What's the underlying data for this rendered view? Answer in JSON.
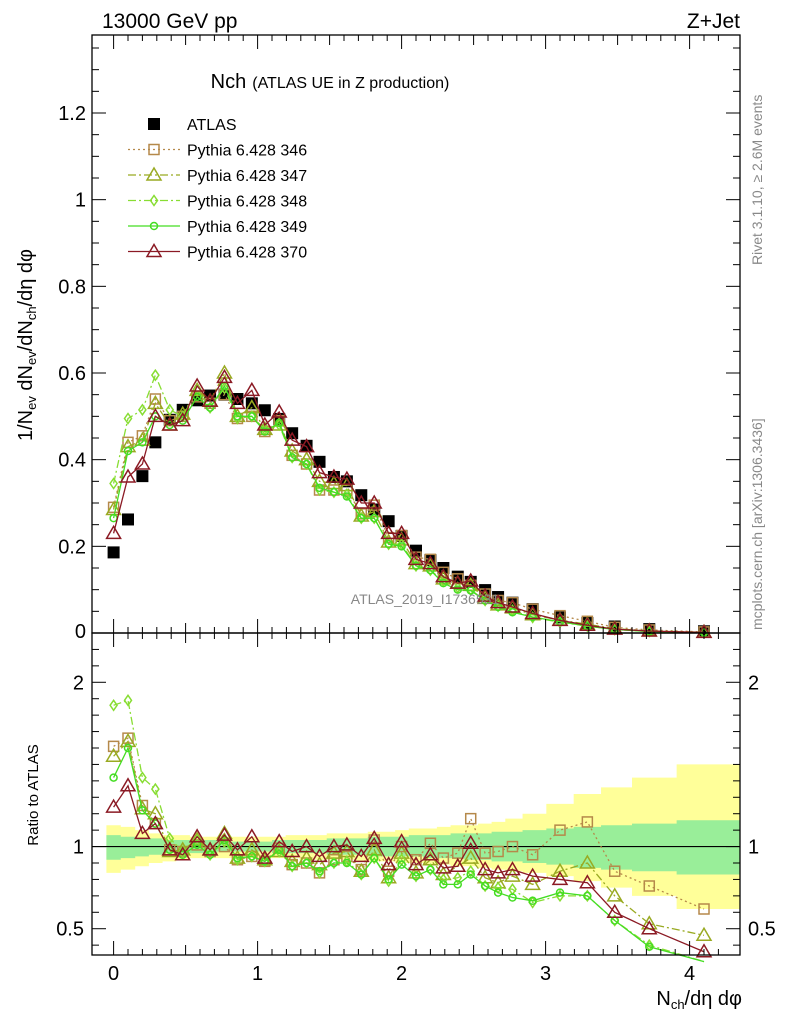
{
  "header": {
    "energy_label": "13000 GeV pp",
    "process_label": "Z+Jet"
  },
  "side": {
    "rivet_label": "Rivet 3.1.10, ≥ 2.6M events",
    "source_label": "mcplots.cern.ch [arXiv:1306.3436]"
  },
  "watermark": "ATLAS_2019_I1736531",
  "colors": {
    "ATLAS": "#000000",
    "p346": "#b5894a",
    "p347": "#99aa22",
    "p348": "#88dd33",
    "p349": "#44dd22",
    "p370": "#8b1a24",
    "band_outer": "#ffff99",
    "band_inner": "#99ee99"
  },
  "chart_data": [
    {
      "type": "scatter",
      "panel": "main",
      "title": "Nch",
      "subtitle": "(ATLAS UE in Z production)",
      "xlabel": "N_ch/dη dφ",
      "ylabel": "1/N_ev dN_ev/dN_ch/dη dφ",
      "xlim": [
        -0.15,
        4.35
      ],
      "ylim": [
        0,
        1.38
      ],
      "yticks": [
        0.2,
        0.4,
        0.6,
        0.8,
        1,
        1.2
      ],
      "ytick_labels": [
        "0.2",
        "0.4",
        "0.6",
        "0.8",
        "1",
        "1.2"
      ],
      "legend_position": "top-left",
      "x": [
        0,
        0.1,
        0.2,
        0.29,
        0.39,
        0.48,
        0.58,
        0.67,
        0.77,
        0.86,
        0.96,
        1.05,
        1.15,
        1.24,
        1.34,
        1.43,
        1.53,
        1.62,
        1.72,
        1.81,
        1.91,
        2.0,
        2.1,
        2.2,
        2.29,
        2.39,
        2.48,
        2.58,
        2.67,
        2.77,
        2.91,
        3.1,
        3.29,
        3.48,
        3.72,
        4.1
      ],
      "series": [
        {
          "name": "ATLAS",
          "marker": "square-filled",
          "line": "none",
          "key": "ATLAS",
          "values": [
            0.186,
            0.262,
            0.362,
            0.44,
            0.492,
            0.515,
            0.537,
            0.548,
            0.55,
            0.54,
            0.53,
            0.514,
            0.494,
            0.461,
            0.432,
            0.395,
            0.36,
            0.35,
            0.318,
            0.285,
            0.258,
            0.224,
            0.19,
            0.168,
            0.15,
            0.13,
            0.118,
            0.099,
            0.083,
            0.07,
            0.055,
            0.036,
            0.023,
            0.015,
            0.009,
            0.004
          ]
        },
        {
          "name": "Pythia 6.428 346",
          "marker": "square-open",
          "line": "dotted",
          "key": "p346",
          "values": [
            0.29,
            0.44,
            0.455,
            0.54,
            0.49,
            0.5,
            0.545,
            0.53,
            0.55,
            0.495,
            0.5,
            0.465,
            0.49,
            0.41,
            0.39,
            0.33,
            0.33,
            0.33,
            0.275,
            0.295,
            0.22,
            0.225,
            0.175,
            0.17,
            0.14,
            0.125,
            0.11,
            0.09,
            0.075,
            0.07,
            0.055,
            0.04,
            0.027,
            0.013,
            0.007,
            0.0025
          ]
        },
        {
          "name": "Pythia 6.428 347",
          "marker": "triangle-open",
          "line": "dashdot",
          "key": "p347",
          "values": [
            0.285,
            0.43,
            0.445,
            0.53,
            0.48,
            0.505,
            0.56,
            0.535,
            0.6,
            0.5,
            0.52,
            0.47,
            0.48,
            0.42,
            0.4,
            0.35,
            0.345,
            0.34,
            0.27,
            0.28,
            0.21,
            0.215,
            0.16,
            0.155,
            0.125,
            0.115,
            0.11,
            0.08,
            0.065,
            0.058,
            0.042,
            0.03,
            0.02,
            0.01,
            0.0048,
            0.0018
          ]
        },
        {
          "name": "Pythia 6.428 348",
          "marker": "diamond-open",
          "line": "dashdot",
          "key": "p348",
          "values": [
            0.345,
            0.495,
            0.515,
            0.595,
            0.515,
            0.5,
            0.56,
            0.52,
            0.565,
            0.495,
            0.5,
            0.47,
            0.48,
            0.405,
            0.39,
            0.33,
            0.325,
            0.32,
            0.265,
            0.265,
            0.205,
            0.205,
            0.155,
            0.145,
            0.12,
            0.105,
            0.1,
            0.075,
            0.062,
            0.052,
            0.036,
            0.025,
            0.016,
            0.008,
            0.0035,
            0.0012
          ]
        },
        {
          "name": "Pythia 6.428 349",
          "marker": "circle-open",
          "line": "solid",
          "key": "p349",
          "values": [
            0.265,
            0.42,
            0.44,
            0.5,
            0.48,
            0.49,
            0.545,
            0.52,
            0.57,
            0.5,
            0.5,
            0.465,
            0.485,
            0.405,
            0.39,
            0.335,
            0.325,
            0.315,
            0.265,
            0.265,
            0.205,
            0.2,
            0.155,
            0.145,
            0.115,
            0.1,
            0.098,
            0.075,
            0.06,
            0.048,
            0.037,
            0.026,
            0.016,
            0.008,
            0.0035,
            0.0012
          ]
        },
        {
          "name": "Pythia 6.428 370",
          "marker": "triangle-open",
          "line": "solid",
          "key": "p370",
          "values": [
            0.23,
            0.36,
            0.39,
            0.5,
            0.48,
            0.49,
            0.57,
            0.535,
            0.59,
            0.53,
            0.56,
            0.48,
            0.51,
            0.445,
            0.43,
            0.37,
            0.36,
            0.355,
            0.3,
            0.3,
            0.23,
            0.23,
            0.17,
            0.16,
            0.13,
            0.115,
            0.12,
            0.085,
            0.07,
            0.06,
            0.045,
            0.029,
            0.018,
            0.009,
            0.0045,
            0.0015
          ]
        }
      ]
    },
    {
      "type": "line",
      "panel": "ratio",
      "ylabel": "Ratio to ATLAS",
      "xlabel": "N_ch/dη dφ",
      "xlim": [
        -0.15,
        4.35
      ],
      "ylim": [
        0.34,
        2.3
      ],
      "xticks": [
        0,
        1,
        2,
        3,
        4
      ],
      "xtick_labels": [
        "0",
        "1",
        "2",
        "3",
        "4"
      ],
      "yticks": [
        0.5,
        1,
        2
      ],
      "ytick_labels": [
        "0.5",
        "1",
        "2"
      ],
      "reference_line": 1,
      "x": [
        0,
        0.1,
        0.2,
        0.29,
        0.39,
        0.48,
        0.58,
        0.67,
        0.77,
        0.86,
        0.96,
        1.05,
        1.15,
        1.24,
        1.34,
        1.43,
        1.53,
        1.62,
        1.72,
        1.81,
        1.91,
        2.0,
        2.1,
        2.2,
        2.29,
        2.39,
        2.48,
        2.58,
        2.67,
        2.77,
        2.91,
        3.1,
        3.29,
        3.48,
        3.72,
        4.1
      ],
      "band_outer": {
        "lo": [
          0.84,
          0.86,
          0.88,
          0.9,
          0.91,
          0.92,
          0.93,
          0.93,
          0.93,
          0.93,
          0.93,
          0.93,
          0.93,
          0.93,
          0.92,
          0.92,
          0.92,
          0.92,
          0.91,
          0.91,
          0.91,
          0.9,
          0.9,
          0.89,
          0.89,
          0.88,
          0.88,
          0.87,
          0.86,
          0.85,
          0.84,
          0.82,
          0.79,
          0.75,
          0.7,
          0.62
        ],
        "hi": [
          1.13,
          1.12,
          1.1,
          1.08,
          1.07,
          1.07,
          1.06,
          1.06,
          1.06,
          1.06,
          1.06,
          1.06,
          1.06,
          1.07,
          1.07,
          1.07,
          1.08,
          1.08,
          1.08,
          1.09,
          1.09,
          1.1,
          1.11,
          1.11,
          1.12,
          1.13,
          1.13,
          1.14,
          1.15,
          1.17,
          1.2,
          1.26,
          1.32,
          1.36,
          1.42,
          1.5
        ]
      },
      "band_inner": {
        "lo": [
          0.92,
          0.93,
          0.94,
          0.95,
          0.96,
          0.96,
          0.96,
          0.96,
          0.97,
          0.97,
          0.97,
          0.97,
          0.96,
          0.96,
          0.96,
          0.96,
          0.95,
          0.95,
          0.95,
          0.94,
          0.94,
          0.94,
          0.94,
          0.93,
          0.93,
          0.93,
          0.92,
          0.92,
          0.91,
          0.91,
          0.9,
          0.89,
          0.87,
          0.86,
          0.85,
          0.83
        ],
        "hi": [
          1.07,
          1.06,
          1.05,
          1.05,
          1.04,
          1.04,
          1.04,
          1.04,
          1.03,
          1.03,
          1.03,
          1.03,
          1.04,
          1.04,
          1.04,
          1.04,
          1.05,
          1.05,
          1.05,
          1.06,
          1.06,
          1.06,
          1.07,
          1.07,
          1.07,
          1.08,
          1.08,
          1.08,
          1.09,
          1.09,
          1.1,
          1.11,
          1.12,
          1.13,
          1.14,
          1.16
        ]
      },
      "series": [
        {
          "name": "Pythia 6.428 346",
          "key": "p346",
          "values": [
            1.61,
            1.66,
            1.25,
            1.14,
            0.98,
            0.97,
            1.01,
            0.97,
            1.0,
            0.92,
            0.94,
            0.91,
            0.99,
            0.89,
            0.9,
            0.84,
            0.92,
            0.94,
            0.86,
            1.04,
            0.85,
            1.0,
            0.92,
            1.02,
            0.93,
            0.96,
            1.17,
            0.96,
            0.97,
            1.0,
            0.95,
            1.1,
            1.15,
            0.85,
            0.76,
            0.62
          ]
        },
        {
          "name": "Pythia 6.428 347",
          "key": "p347",
          "values": [
            1.55,
            1.64,
            1.23,
            1.2,
            0.97,
            0.98,
            1.04,
            0.98,
            1.08,
            0.93,
            0.98,
            0.92,
            0.97,
            0.91,
            0.93,
            0.89,
            0.96,
            0.97,
            0.85,
            0.98,
            0.81,
            0.96,
            0.84,
            0.92,
            0.83,
            0.88,
            0.93,
            0.81,
            0.78,
            0.82,
            0.77,
            0.85,
            0.9,
            0.7,
            0.53,
            0.46
          ]
        },
        {
          "name": "Pythia 6.428 348",
          "key": "p348",
          "values": [
            1.86,
            1.89,
            1.42,
            1.35,
            1.05,
            0.97,
            1.04,
            0.95,
            1.03,
            0.92,
            0.94,
            0.91,
            0.97,
            0.88,
            0.9,
            0.84,
            0.9,
            0.91,
            0.83,
            0.93,
            0.79,
            0.92,
            0.82,
            0.86,
            0.8,
            0.81,
            0.85,
            0.76,
            0.75,
            0.74,
            0.66,
            0.7,
            0.7,
            0.55,
            0.4,
            0.3
          ]
        },
        {
          "name": "Pythia 6.428 349",
          "key": "p349",
          "values": [
            1.42,
            1.6,
            1.22,
            1.14,
            0.98,
            0.95,
            1.01,
            0.95,
            1.04,
            0.93,
            0.94,
            0.91,
            0.98,
            0.88,
            0.9,
            0.85,
            0.9,
            0.9,
            0.83,
            0.93,
            0.8,
            0.89,
            0.82,
            0.86,
            0.77,
            0.77,
            0.83,
            0.76,
            0.72,
            0.69,
            0.67,
            0.72,
            0.7,
            0.55,
            0.39,
            0.3
          ]
        },
        {
          "name": "Pythia 6.428 370",
          "key": "p370",
          "values": [
            1.24,
            1.37,
            1.08,
            1.14,
            0.98,
            0.95,
            1.06,
            0.98,
            1.07,
            0.98,
            1.06,
            0.93,
            1.03,
            0.97,
            1.0,
            0.94,
            1.0,
            1.01,
            0.94,
            1.05,
            0.89,
            1.03,
            0.89,
            0.95,
            0.87,
            0.88,
            1.02,
            0.86,
            0.84,
            0.86,
            0.82,
            0.8,
            0.78,
            0.6,
            0.5,
            0.36
          ]
        }
      ]
    }
  ]
}
